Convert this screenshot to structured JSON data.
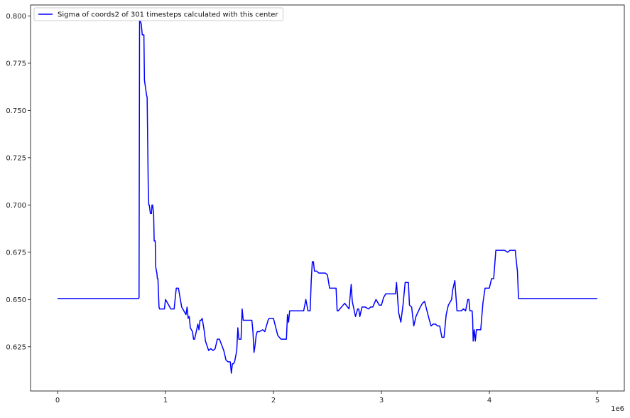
{
  "chart_data": {
    "type": "line",
    "title": "",
    "xlabel": "",
    "ylabel": "",
    "x_offset_label": "1e6",
    "xlim": [
      -250000,
      5250000
    ],
    "ylim": [
      0.6016,
      0.8058
    ],
    "x_ticks": [
      0,
      1,
      2,
      3,
      4,
      5
    ],
    "y_ticks": [
      0.625,
      0.65,
      0.675,
      0.7,
      0.725,
      0.75,
      0.775,
      0.8
    ],
    "y_tick_labels": [
      "0.625",
      "0.650",
      "0.675",
      "0.700",
      "0.725",
      "0.750",
      "0.775",
      "0.800"
    ],
    "legend_placement": "top-left",
    "grid": false,
    "series": [
      {
        "name": "Sigma of coords2 of 301 timesteps calculated with this center",
        "color": "#0000ff",
        "x": [
          0,
          750000,
          755000,
          760000,
          765000,
          770000,
          775000,
          785000,
          790000,
          800000,
          805000,
          810000,
          820000,
          825000,
          830000,
          840000,
          845000,
          850000,
          860000,
          870000,
          875000,
          880000,
          890000,
          895000,
          900000,
          905000,
          910000,
          920000,
          925000,
          930000,
          940000,
          945000,
          950000,
          960000,
          970000,
          980000,
          990000,
          1000000,
          1050000,
          1060000,
          1080000,
          1100000,
          1120000,
          1150000,
          1190000,
          1200000,
          1210000,
          1220000,
          1230000,
          1250000,
          1260000,
          1270000,
          1300000,
          1310000,
          1320000,
          1330000,
          1340000,
          1360000,
          1370000,
          1400000,
          1420000,
          1440000,
          1460000,
          1480000,
          1500000,
          1540000,
          1560000,
          1580000,
          1600000,
          1610000,
          1620000,
          1630000,
          1640000,
          1660000,
          1670000,
          1680000,
          1700000,
          1710000,
          1720000,
          1740000,
          1760000,
          1790000,
          1800000,
          1810000,
          1820000,
          1830000,
          1840000,
          1850000,
          1870000,
          1900000,
          1920000,
          1950000,
          1960000,
          1980000,
          2000000,
          2040000,
          2070000,
          2080000,
          2120000,
          2130000,
          2140000,
          2150000,
          2170000,
          2200000,
          2240000,
          2260000,
          2280000,
          2300000,
          2320000,
          2340000,
          2350000,
          2360000,
          2370000,
          2380000,
          2400000,
          2420000,
          2440000,
          2460000,
          2480000,
          2500000,
          2520000,
          2580000,
          2590000,
          2600000,
          2630000,
          2660000,
          2700000,
          2720000,
          2730000,
          2760000,
          2780000,
          2790000,
          2800000,
          2820000,
          2850000,
          2880000,
          2900000,
          2920000,
          2950000,
          2980000,
          3000000,
          3020000,
          3040000,
          3060000,
          3100000,
          3130000,
          3140000,
          3150000,
          3160000,
          3180000,
          3200000,
          3220000,
          3250000,
          3260000,
          3280000,
          3300000,
          3320000,
          3360000,
          3380000,
          3400000,
          3440000,
          3460000,
          3480000,
          3500000,
          3520000,
          3540000,
          3560000,
          3570000,
          3580000,
          3600000,
          3620000,
          3640000,
          3650000,
          3660000,
          3680000,
          3700000,
          3720000,
          3730000,
          3740000,
          3760000,
          3780000,
          3800000,
          3810000,
          3820000,
          3830000,
          3840000,
          3845000,
          3850000,
          3860000,
          3870000,
          3880000,
          3900000,
          3920000,
          3940000,
          3960000,
          4000000,
          4020000,
          4040000,
          4060000,
          4100000,
          4140000,
          4170000,
          4190000,
          4200000,
          4230000,
          4240000,
          4250000,
          4260000,
          4270000,
          4290000,
          4500000,
          5000000
        ],
        "y": [
          0.6505,
          0.6505,
          0.651,
          0.8005,
          0.7985,
          0.7965,
          0.796,
          0.79,
          0.79,
          0.79,
          0.766,
          0.764,
          0.76,
          0.758,
          0.757,
          0.711,
          0.7,
          0.7,
          0.6955,
          0.6955,
          0.7,
          0.7,
          0.696,
          0.681,
          0.681,
          0.681,
          0.667,
          0.664,
          0.661,
          0.661,
          0.646,
          0.645,
          0.645,
          0.645,
          0.645,
          0.645,
          0.645,
          0.65,
          0.645,
          0.645,
          0.645,
          0.656,
          0.656,
          0.646,
          0.642,
          0.646,
          0.64,
          0.641,
          0.635,
          0.633,
          0.629,
          0.629,
          0.637,
          0.634,
          0.639,
          0.639,
          0.64,
          0.633,
          0.628,
          0.623,
          0.624,
          0.623,
          0.624,
          0.629,
          0.629,
          0.623,
          0.618,
          0.617,
          0.617,
          0.611,
          0.616,
          0.616,
          0.617,
          0.623,
          0.635,
          0.629,
          0.629,
          0.645,
          0.639,
          0.639,
          0.639,
          0.639,
          0.639,
          0.633,
          0.622,
          0.626,
          0.631,
          0.633,
          0.633,
          0.634,
          0.633,
          0.639,
          0.64,
          0.64,
          0.64,
          0.631,
          0.629,
          0.629,
          0.629,
          0.642,
          0.638,
          0.644,
          0.644,
          0.644,
          0.644,
          0.644,
          0.644,
          0.65,
          0.644,
          0.644,
          0.66,
          0.67,
          0.67,
          0.665,
          0.665,
          0.664,
          0.664,
          0.664,
          0.664,
          0.663,
          0.656,
          0.656,
          0.644,
          0.644,
          0.646,
          0.648,
          0.645,
          0.658,
          0.649,
          0.641,
          0.645,
          0.645,
          0.641,
          0.646,
          0.646,
          0.645,
          0.646,
          0.646,
          0.65,
          0.647,
          0.647,
          0.651,
          0.653,
          0.653,
          0.653,
          0.653,
          0.659,
          0.651,
          0.643,
          0.638,
          0.647,
          0.659,
          0.659,
          0.647,
          0.646,
          0.636,
          0.641,
          0.646,
          0.648,
          0.649,
          0.64,
          0.636,
          0.637,
          0.637,
          0.636,
          0.636,
          0.63,
          0.63,
          0.63,
          0.642,
          0.647,
          0.649,
          0.65,
          0.655,
          0.66,
          0.644,
          0.644,
          0.644,
          0.644,
          0.645,
          0.644,
          0.65,
          0.65,
          0.644,
          0.644,
          0.644,
          0.64,
          0.628,
          0.634,
          0.628,
          0.634,
          0.634,
          0.634,
          0.648,
          0.656,
          0.656,
          0.661,
          0.661,
          0.676,
          0.676,
          0.676,
          0.675,
          0.676,
          0.676,
          0.676,
          0.676,
          0.67,
          0.665,
          0.6505,
          0.6505,
          0.6505,
          0.6505
        ]
      }
    ]
  }
}
